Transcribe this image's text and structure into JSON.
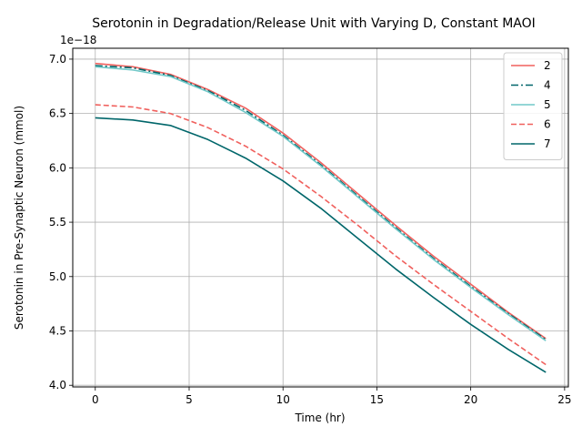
{
  "chart_data": {
    "type": "line",
    "title": "Serotonin in Degradation/Release Unit with Varying D, Constant MAOI",
    "xlabel": "Time (hr)",
    "ylabel": "Serotonin in Pre-Synaptic Neuron (mmol)",
    "y_offset_label": "1e−18",
    "xlim": [
      -1.2,
      25.2
    ],
    "ylim": [
      3.985,
      7.1
    ],
    "xticks": [
      0,
      5,
      10,
      15,
      20,
      25
    ],
    "xtick_labels": [
      "0",
      "5",
      "10",
      "15",
      "20",
      "25"
    ],
    "yticks": [
      4.0,
      4.5,
      5.0,
      5.5,
      6.0,
      6.5,
      7.0
    ],
    "ytick_labels": [
      "4.0",
      "4.5",
      "5.0",
      "5.5",
      "6.0",
      "6.5",
      "7.0"
    ],
    "grid": true,
    "legend_position": "top-right",
    "x": [
      0,
      2,
      4,
      6,
      8,
      10,
      12,
      14,
      16,
      18,
      20,
      22,
      24
    ],
    "series": [
      {
        "name": "2",
        "color": "#f0605d",
        "dash": "solid",
        "values": [
          6.96,
          6.93,
          6.86,
          6.72,
          6.55,
          6.32,
          6.05,
          5.76,
          5.47,
          5.19,
          4.93,
          4.67,
          4.43
        ]
      },
      {
        "name": "4",
        "color": "#00666a",
        "dash": "dashdot",
        "values": [
          6.94,
          6.92,
          6.85,
          6.71,
          6.53,
          6.3,
          6.03,
          5.74,
          5.45,
          5.17,
          4.91,
          4.66,
          4.42
        ]
      },
      {
        "name": "5",
        "color": "#71c8c8",
        "dash": "solid",
        "values": [
          6.93,
          6.9,
          6.84,
          6.7,
          6.51,
          6.29,
          6.02,
          5.73,
          5.44,
          5.16,
          4.9,
          4.65,
          4.41
        ]
      },
      {
        "name": "6",
        "color": "#f0605d",
        "dash": "dashed",
        "values": [
          6.58,
          6.56,
          6.5,
          6.37,
          6.2,
          5.99,
          5.74,
          5.47,
          5.19,
          4.93,
          4.68,
          4.43,
          4.19
        ]
      },
      {
        "name": "7",
        "color": "#00666a",
        "dash": "solid",
        "values": [
          6.46,
          6.44,
          6.39,
          6.26,
          6.09,
          5.88,
          5.63,
          5.35,
          5.07,
          4.81,
          4.56,
          4.33,
          4.12
        ]
      }
    ]
  }
}
